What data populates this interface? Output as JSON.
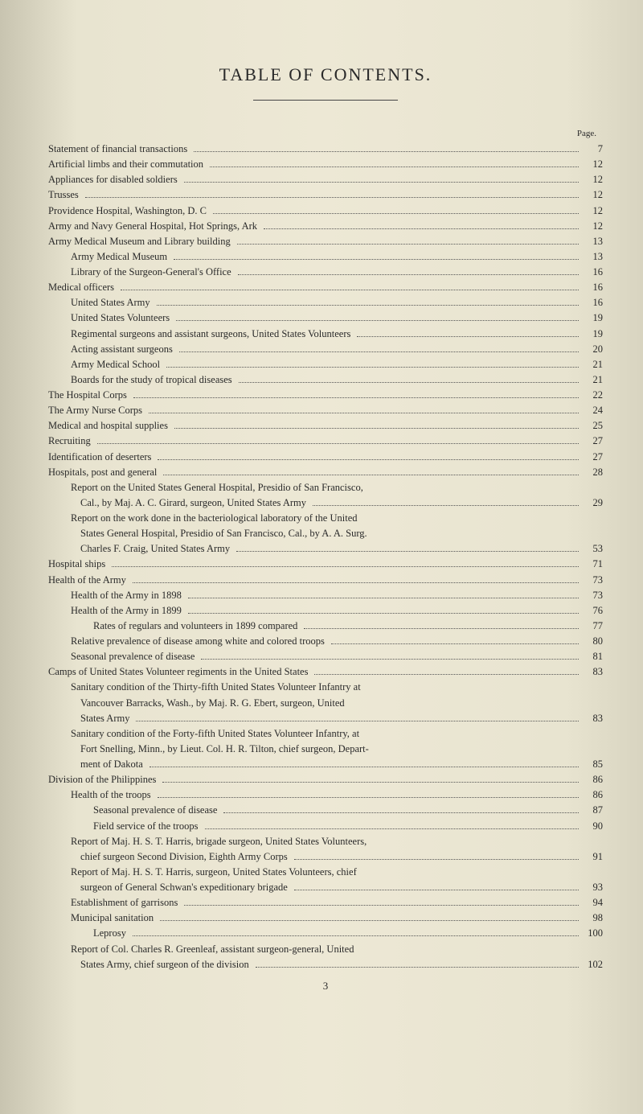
{
  "page": {
    "title": "TABLE OF CONTENTS.",
    "page_label": "Page.",
    "footer_page_number": "3",
    "background_color": "#e8e4d0",
    "text_color": "#2a2a2a",
    "font_family": "Georgia, Times New Roman, serif",
    "title_fontsize": 22,
    "body_fontsize": 12.5,
    "line_height": 1.45,
    "dot_leader_color": "#555"
  },
  "entries": [
    {
      "indent": 0,
      "label": "Statement of financial transactions",
      "page": "7"
    },
    {
      "indent": 0,
      "label": "Artificial limbs and their commutation",
      "page": "12"
    },
    {
      "indent": 0,
      "label": "Appliances for disabled soldiers",
      "page": "12"
    },
    {
      "indent": 0,
      "label": "Trusses",
      "page": "12"
    },
    {
      "indent": 0,
      "label": "Providence Hospital, Washington, D. C",
      "page": "12"
    },
    {
      "indent": 0,
      "label": "Army and Navy General Hospital, Hot Springs, Ark",
      "page": "12"
    },
    {
      "indent": 0,
      "label": "Army Medical Museum and Library building",
      "page": "13"
    },
    {
      "indent": 1,
      "label": "Army Medical Museum",
      "page": "13"
    },
    {
      "indent": 1,
      "label": "Library of the Surgeon-General's Office",
      "page": "16"
    },
    {
      "indent": 0,
      "label": "Medical officers",
      "page": "16"
    },
    {
      "indent": 1,
      "label": "United States Army",
      "page": "16"
    },
    {
      "indent": 1,
      "label": "United States Volunteers",
      "page": "19"
    },
    {
      "indent": 1,
      "label": "Regimental surgeons and assistant surgeons, United States Volunteers",
      "page": "19"
    },
    {
      "indent": 1,
      "label": "Acting assistant surgeons",
      "page": "20"
    },
    {
      "indent": 1,
      "label": "Army Medical School",
      "page": "21"
    },
    {
      "indent": 1,
      "label": "Boards for the study of tropical diseases",
      "page": "21"
    },
    {
      "indent": 0,
      "label": "The Hospital Corps",
      "page": "22"
    },
    {
      "indent": 0,
      "label": "The Army Nurse Corps",
      "page": "24"
    },
    {
      "indent": 0,
      "label": "Medical and hospital supplies",
      "page": "25"
    },
    {
      "indent": 0,
      "label": "Recruiting",
      "page": "27"
    },
    {
      "indent": 0,
      "label": "Identification of deserters",
      "page": "27"
    },
    {
      "indent": 0,
      "label": "Hospitals, post and general",
      "page": "28"
    },
    {
      "indent": 1,
      "label": "Report on the United States General Hospital, Presidio of San Francisco,",
      "page": ""
    },
    {
      "indent": 2,
      "label": "Cal., by Maj. A. C. Girard, surgeon, United States Army",
      "page": "29",
      "cont": true
    },
    {
      "indent": 1,
      "label": "Report on the work done in the bacteriological laboratory of the United",
      "page": ""
    },
    {
      "indent": 2,
      "label": "States General Hospital, Presidio of San Francisco, Cal., by A. A. Surg.",
      "page": "",
      "cont": true
    },
    {
      "indent": 2,
      "label": "Charles F. Craig, United States Army",
      "page": "53",
      "cont": true
    },
    {
      "indent": 0,
      "label": "Hospital ships",
      "page": "71"
    },
    {
      "indent": 0,
      "label": "Health of the Army",
      "page": "73"
    },
    {
      "indent": 1,
      "label": "Health of the Army in 1898",
      "page": "73"
    },
    {
      "indent": 1,
      "label": "Health of the Army in 1899",
      "page": "76"
    },
    {
      "indent": 2,
      "label": "Rates of regulars and volunteers in 1899 compared",
      "page": "77"
    },
    {
      "indent": 1,
      "label": "Relative prevalence of disease among white and colored troops",
      "page": "80"
    },
    {
      "indent": 1,
      "label": "Seasonal prevalence of disease",
      "page": "81"
    },
    {
      "indent": 0,
      "label": "Camps of United States Volunteer regiments in the United States",
      "page": "83"
    },
    {
      "indent": 1,
      "label": "Sanitary condition of the Thirty-fifth United States Volunteer Infantry at",
      "page": ""
    },
    {
      "indent": 2,
      "label": "Vancouver Barracks, Wash., by Maj. R. G. Ebert, surgeon, United",
      "page": "",
      "cont": true
    },
    {
      "indent": 2,
      "label": "States Army",
      "page": "83",
      "cont": true
    },
    {
      "indent": 1,
      "label": "Sanitary condition of the Forty-fifth United States Volunteer Infantry, at",
      "page": ""
    },
    {
      "indent": 2,
      "label": "Fort Snelling, Minn., by Lieut. Col. H. R. Tilton, chief surgeon, Depart-",
      "page": "",
      "cont": true
    },
    {
      "indent": 2,
      "label": "ment of Dakota",
      "page": "85",
      "cont": true
    },
    {
      "indent": 0,
      "label": "Division of the Philippines",
      "page": "86"
    },
    {
      "indent": 1,
      "label": "Health of the troops",
      "page": "86"
    },
    {
      "indent": 2,
      "label": "Seasonal prevalence of disease",
      "page": "87"
    },
    {
      "indent": 2,
      "label": "Field service of the troops",
      "page": "90"
    },
    {
      "indent": 1,
      "label": "Report of Maj. H. S. T. Harris, brigade surgeon, United States Volunteers,",
      "page": ""
    },
    {
      "indent": 2,
      "label": "chief surgeon Second Division, Eighth Army Corps",
      "page": "91",
      "cont": true
    },
    {
      "indent": 1,
      "label": "Report of Maj. H. S. T. Harris, surgeon, United States Volunteers, chief",
      "page": ""
    },
    {
      "indent": 2,
      "label": "surgeon of General Schwan's expeditionary brigade",
      "page": "93",
      "cont": true
    },
    {
      "indent": 1,
      "label": "Establishment of garrisons",
      "page": "94"
    },
    {
      "indent": 1,
      "label": "Municipal sanitation",
      "page": "98"
    },
    {
      "indent": 2,
      "label": "Leprosy",
      "page": "100"
    },
    {
      "indent": 1,
      "label": "Report of Col. Charles R. Greenleaf, assistant surgeon-general, United",
      "page": ""
    },
    {
      "indent": 2,
      "label": "States Army, chief surgeon of the division",
      "page": "102",
      "cont": true
    }
  ]
}
